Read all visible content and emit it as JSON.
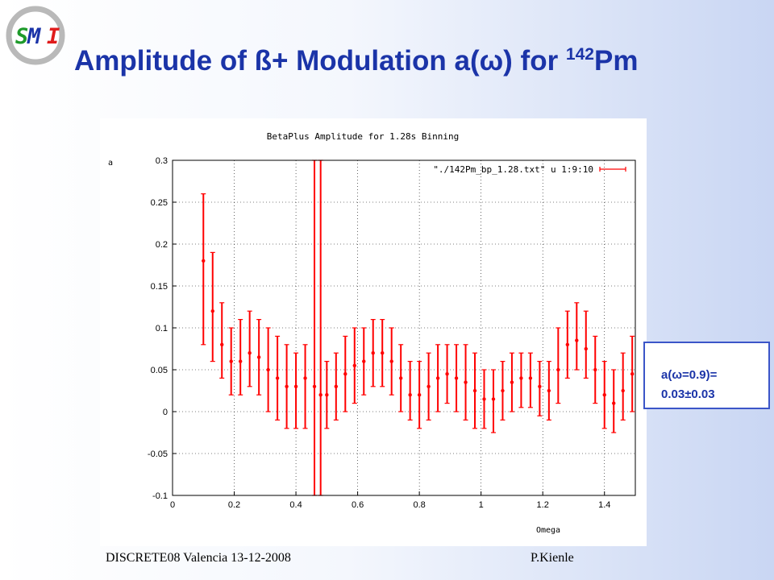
{
  "slide": {
    "title_main": "Amplitude of ß+ Modulation a(ω) for ",
    "title_sup": "142",
    "title_suffix": "Pm",
    "logo_text": "SMI",
    "callout_line1": "a(ω=0.9)=",
    "callout_line2": "0.03±0.03",
    "footer_left": "DISCRETE08  Valencia 13-12-2008",
    "footer_right": "P.Kienle"
  },
  "colors": {
    "title": "#1b34a8",
    "series": "#ff0000",
    "callout_border": "#3b55c8"
  },
  "chart_data": {
    "type": "scatter",
    "title": "BetaPlus Amplitude for 1.28s Binning",
    "xlabel": "Omega",
    "ylabel": "a",
    "xlim": [
      0,
      1.5
    ],
    "ylim": [
      -0.1,
      0.3
    ],
    "xticks": [
      0,
      0.2,
      0.4,
      0.6,
      0.8,
      1,
      1.2,
      1.4
    ],
    "xtick_labels": [
      "0",
      "0.2",
      "0.4",
      "0.6",
      "0.8",
      "1",
      "1.2",
      "1.4"
    ],
    "yticks": [
      -0.1,
      -0.05,
      0,
      0.05,
      0.1,
      0.15,
      0.2,
      0.25,
      0.3
    ],
    "ytick_labels": [
      "-0.1",
      "-0.05",
      "0",
      "0.05",
      "0.1",
      "0.15",
      "0.2",
      "0.25",
      "0.3"
    ],
    "grid": true,
    "legend": "top-right",
    "series": [
      {
        "name": "\"./142Pm_bp_1.28.txt\" u 1:9:10",
        "style": "errorbars",
        "points": [
          {
            "x": 0.1,
            "y": 0.18,
            "lo": 0.08,
            "hi": 0.26
          },
          {
            "x": 0.13,
            "y": 0.12,
            "lo": 0.06,
            "hi": 0.19
          },
          {
            "x": 0.16,
            "y": 0.08,
            "lo": 0.04,
            "hi": 0.13
          },
          {
            "x": 0.19,
            "y": 0.06,
            "lo": 0.02,
            "hi": 0.1
          },
          {
            "x": 0.22,
            "y": 0.06,
            "lo": 0.02,
            "hi": 0.11
          },
          {
            "x": 0.25,
            "y": 0.07,
            "lo": 0.03,
            "hi": 0.12
          },
          {
            "x": 0.28,
            "y": 0.065,
            "lo": 0.02,
            "hi": 0.11
          },
          {
            "x": 0.31,
            "y": 0.05,
            "lo": 0.0,
            "hi": 0.1
          },
          {
            "x": 0.34,
            "y": 0.04,
            "lo": -0.01,
            "hi": 0.09
          },
          {
            "x": 0.37,
            "y": 0.03,
            "lo": -0.02,
            "hi": 0.08
          },
          {
            "x": 0.4,
            "y": 0.03,
            "lo": -0.02,
            "hi": 0.07
          },
          {
            "x": 0.43,
            "y": 0.04,
            "lo": -0.02,
            "hi": 0.08
          },
          {
            "x": 0.46,
            "y": 0.03,
            "lo": -0.1,
            "hi": 0.3
          },
          {
            "x": 0.48,
            "y": 0.02,
            "lo": -0.1,
            "hi": 0.3
          },
          {
            "x": 0.5,
            "y": 0.02,
            "lo": -0.02,
            "hi": 0.06
          },
          {
            "x": 0.53,
            "y": 0.03,
            "lo": -0.01,
            "hi": 0.07
          },
          {
            "x": 0.56,
            "y": 0.045,
            "lo": 0.0,
            "hi": 0.09
          },
          {
            "x": 0.59,
            "y": 0.055,
            "lo": 0.01,
            "hi": 0.1
          },
          {
            "x": 0.62,
            "y": 0.06,
            "lo": 0.02,
            "hi": 0.1
          },
          {
            "x": 0.65,
            "y": 0.07,
            "lo": 0.03,
            "hi": 0.11
          },
          {
            "x": 0.68,
            "y": 0.07,
            "lo": 0.03,
            "hi": 0.11
          },
          {
            "x": 0.71,
            "y": 0.06,
            "lo": 0.02,
            "hi": 0.1
          },
          {
            "x": 0.74,
            "y": 0.04,
            "lo": 0.0,
            "hi": 0.08
          },
          {
            "x": 0.77,
            "y": 0.02,
            "lo": -0.01,
            "hi": 0.06
          },
          {
            "x": 0.8,
            "y": 0.02,
            "lo": -0.02,
            "hi": 0.06
          },
          {
            "x": 0.83,
            "y": 0.03,
            "lo": -0.01,
            "hi": 0.07
          },
          {
            "x": 0.86,
            "y": 0.04,
            "lo": 0.0,
            "hi": 0.08
          },
          {
            "x": 0.89,
            "y": 0.045,
            "lo": 0.01,
            "hi": 0.08
          },
          {
            "x": 0.92,
            "y": 0.04,
            "lo": 0.0,
            "hi": 0.08
          },
          {
            "x": 0.95,
            "y": 0.035,
            "lo": -0.01,
            "hi": 0.08
          },
          {
            "x": 0.98,
            "y": 0.025,
            "lo": -0.02,
            "hi": 0.07
          },
          {
            "x": 1.01,
            "y": 0.015,
            "lo": -0.02,
            "hi": 0.05
          },
          {
            "x": 1.04,
            "y": 0.015,
            "lo": -0.025,
            "hi": 0.05
          },
          {
            "x": 1.07,
            "y": 0.025,
            "lo": -0.01,
            "hi": 0.06
          },
          {
            "x": 1.1,
            "y": 0.035,
            "lo": 0.0,
            "hi": 0.07
          },
          {
            "x": 1.13,
            "y": 0.04,
            "lo": 0.005,
            "hi": 0.07
          },
          {
            "x": 1.16,
            "y": 0.04,
            "lo": 0.005,
            "hi": 0.07
          },
          {
            "x": 1.19,
            "y": 0.03,
            "lo": -0.005,
            "hi": 0.06
          },
          {
            "x": 1.22,
            "y": 0.025,
            "lo": -0.01,
            "hi": 0.06
          },
          {
            "x": 1.25,
            "y": 0.05,
            "lo": 0.01,
            "hi": 0.1
          },
          {
            "x": 1.28,
            "y": 0.08,
            "lo": 0.04,
            "hi": 0.12
          },
          {
            "x": 1.31,
            "y": 0.085,
            "lo": 0.05,
            "hi": 0.13
          },
          {
            "x": 1.34,
            "y": 0.075,
            "lo": 0.04,
            "hi": 0.12
          },
          {
            "x": 1.37,
            "y": 0.05,
            "lo": 0.01,
            "hi": 0.09
          },
          {
            "x": 1.4,
            "y": 0.02,
            "lo": -0.02,
            "hi": 0.06
          },
          {
            "x": 1.43,
            "y": 0.01,
            "lo": -0.025,
            "hi": 0.05
          },
          {
            "x": 1.46,
            "y": 0.025,
            "lo": -0.01,
            "hi": 0.07
          },
          {
            "x": 1.49,
            "y": 0.045,
            "lo": 0.0,
            "hi": 0.09
          }
        ]
      }
    ]
  }
}
